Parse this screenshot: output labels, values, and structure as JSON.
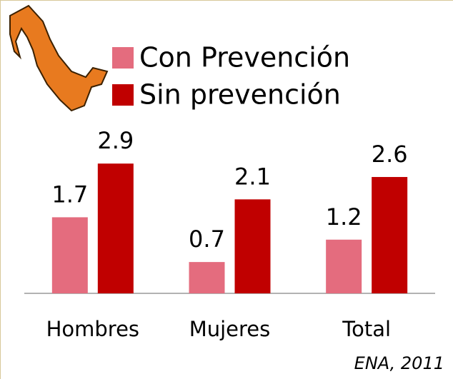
{
  "chart_data": {
    "type": "bar",
    "categories": [
      "Hombres",
      "Mujeres",
      "Total"
    ],
    "series": [
      {
        "name": "Con Prevención",
        "color": "#e46c7e",
        "values": [
          1.7,
          0.7,
          1.2
        ]
      },
      {
        "name": "Sin prevención",
        "color": "#c00000",
        "values": [
          2.9,
          2.1,
          2.6
        ]
      }
    ],
    "ylim": [
      0,
      3.5
    ],
    "source": "ENA, 2011"
  }
}
